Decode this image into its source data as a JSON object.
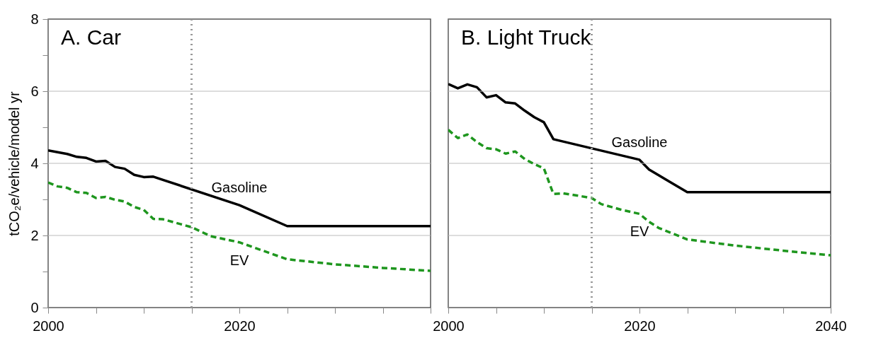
{
  "chart_data": [
    {
      "type": "line",
      "title": "A.  Car",
      "ylabel": "tCO₂e/vehicle/model yr",
      "xlim": [
        2000,
        2040
      ],
      "xticks": [
        2000,
        {
          "value": 2005,
          "label": null
        },
        {
          "value": 2010,
          "label": null
        },
        {
          "value": 2015,
          "label": null
        },
        2020,
        {
          "value": 2025,
          "label": null
        },
        {
          "value": 2030,
          "label": null
        },
        {
          "value": 2035,
          "label": null
        },
        {
          "value": 2040,
          "label": null
        }
      ],
      "ylim": [
        0,
        8
      ],
      "yticks": [
        0,
        {
          "value": 1,
          "label": null
        },
        2,
        {
          "value": 3,
          "label": null
        },
        4,
        {
          "value": 5,
          "label": null
        },
        6,
        {
          "value": 7,
          "label": null
        },
        8
      ],
      "grid": "y",
      "ref_lines": [
        {
          "axis": "x",
          "value": 2015,
          "color": "#999999",
          "line_style": "dotted"
        }
      ],
      "series": [
        {
          "name": "Gasoline",
          "color": "#000000",
          "line_style": "solid",
          "x": [
            2000,
            2001,
            2002,
            2003,
            2004,
            2005,
            2006,
            2007,
            2008,
            2009,
            2010,
            2011,
            2020,
            2025,
            2040
          ],
          "values": [
            4.36,
            4.31,
            4.26,
            4.18,
            4.15,
            4.05,
            4.07,
            3.9,
            3.85,
            3.68,
            3.62,
            3.63,
            2.84,
            2.26,
            2.26
          ]
        },
        {
          "name": "EV",
          "color": "#1e961e",
          "line_style": "dashed",
          "x": [
            2000,
            2001,
            2002,
            2003,
            2004,
            2005,
            2006,
            2007,
            2008,
            2009,
            2010,
            2011,
            2012,
            2015,
            2017,
            2020,
            2025,
            2030,
            2035,
            2040
          ],
          "values": [
            3.47,
            3.36,
            3.32,
            3.2,
            3.18,
            3.04,
            3.07,
            2.99,
            2.94,
            2.79,
            2.71,
            2.46,
            2.45,
            2.23,
            1.98,
            1.81,
            1.34,
            1.2,
            1.1,
            1.02
          ]
        }
      ]
    },
    {
      "type": "line",
      "title": "B.  Light Truck",
      "tick_labels": "x",
      "xlim": [
        2000,
        2040
      ],
      "xticks": [
        2000,
        {
          "value": 2005,
          "label": null
        },
        {
          "value": 2010,
          "label": null
        },
        {
          "value": 2015,
          "label": null
        },
        2020,
        {
          "value": 2025,
          "label": null
        },
        {
          "value": 2030,
          "label": null
        },
        {
          "value": 2035,
          "label": null
        },
        2040
      ],
      "ylim": [
        0,
        8
      ],
      "yticks": [
        0,
        2,
        4,
        6,
        8
      ],
      "grid": "y",
      "ref_lines": [
        {
          "axis": "x",
          "value": 2015,
          "color": "#999999",
          "line_style": "dotted"
        }
      ],
      "series": [
        {
          "name": "Gasoline",
          "color": "#000000",
          "line_style": "solid",
          "x": [
            2000,
            2001,
            2002,
            2003,
            2004,
            2005,
            2006,
            2007,
            2008,
            2009,
            2010,
            2011,
            2020,
            2021,
            2022,
            2025,
            2040
          ],
          "values": [
            6.2,
            6.08,
            6.19,
            6.11,
            5.83,
            5.89,
            5.69,
            5.66,
            5.46,
            5.28,
            5.14,
            4.67,
            4.1,
            3.83,
            3.67,
            3.2,
            3.2
          ]
        },
        {
          "name": "EV",
          "color": "#1e961e",
          "line_style": "dashed",
          "x": [
            2000,
            2001,
            2002,
            2003,
            2004,
            2005,
            2006,
            2007,
            2008,
            2009,
            2010,
            2011,
            2012,
            2015,
            2016,
            2018,
            2020,
            2021,
            2022,
            2025,
            2030,
            2035,
            2040
          ],
          "values": [
            4.93,
            4.7,
            4.8,
            4.59,
            4.42,
            4.39,
            4.27,
            4.33,
            4.12,
            3.98,
            3.86,
            3.15,
            3.17,
            3.04,
            2.87,
            2.72,
            2.6,
            2.38,
            2.21,
            1.89,
            1.72,
            1.58,
            1.45
          ]
        }
      ]
    }
  ]
}
